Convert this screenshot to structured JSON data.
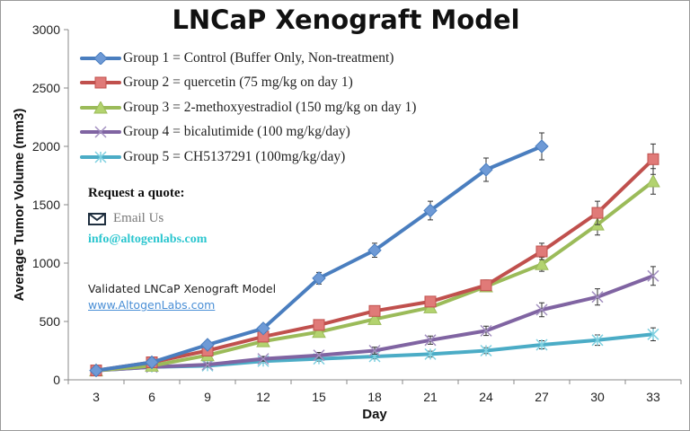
{
  "chart_data": {
    "type": "line",
    "title": "LNCaP Xenograft Model",
    "xlabel": "Day",
    "ylabel": "Average Tumor Volume (mm3)",
    "categories": [
      3,
      6,
      9,
      12,
      15,
      18,
      21,
      24,
      27,
      30,
      33
    ],
    "ylim": [
      0,
      3000
    ],
    "yticks": [
      0,
      500,
      1000,
      1500,
      2000,
      2500,
      3000
    ],
    "grid": false,
    "legend_placement": "top-left",
    "series": [
      {
        "name": "Group 1 = Control (Buffer Only, Non-treatment)",
        "color": "#4a7ebf",
        "marker": "diamond",
        "values": [
          80,
          150,
          300,
          440,
          870,
          1110,
          1450,
          1800,
          2000,
          null,
          null
        ],
        "errors": [
          10,
          15,
          25,
          35,
          50,
          60,
          80,
          100,
          115,
          null,
          null
        ]
      },
      {
        "name": "Group 2 = quercetin (75 mg/kg on day 1)",
        "color": "#c0504d",
        "marker": "square",
        "values": [
          80,
          150,
          250,
          370,
          470,
          590,
          670,
          810,
          1100,
          1430,
          1890
        ],
        "errors": [
          10,
          15,
          20,
          25,
          30,
          35,
          40,
          45,
          70,
          100,
          130
        ]
      },
      {
        "name": "Group 3 = 2-methoxyestradiol (150 mg/kg on day 1)",
        "color": "#9bbb59",
        "marker": "triangle",
        "values": [
          80,
          120,
          210,
          330,
          410,
          520,
          620,
          800,
          990,
          1330,
          1700
        ],
        "errors": [
          10,
          15,
          20,
          25,
          30,
          35,
          40,
          45,
          60,
          90,
          110
        ]
      },
      {
        "name": "Group 4 = bicalutimide (100 mg/kg/day)",
        "color": "#8064a2",
        "marker": "x",
        "values": [
          80,
          110,
          130,
          180,
          210,
          250,
          340,
          420,
          600,
          710,
          890
        ],
        "errors": [
          10,
          12,
          15,
          20,
          25,
          30,
          35,
          40,
          60,
          70,
          80
        ]
      },
      {
        "name": "Group 5 = CH5137291 (100mg/kg/day)",
        "color": "#4bacc6",
        "marker": "star",
        "values": [
          80,
          110,
          120,
          160,
          180,
          200,
          220,
          250,
          300,
          340,
          390
        ],
        "errors": [
          10,
          12,
          15,
          15,
          20,
          20,
          25,
          25,
          35,
          45,
          55
        ]
      }
    ]
  },
  "annotations": {
    "request_quote": "Request a quote:",
    "email_label": "Email Us",
    "email_icon": "envelope-icon",
    "email_address": "info@altogenlabs.com",
    "validated": "Validated LNCaP Xenograft Model",
    "website": "www.AltogenLabs.com"
  }
}
